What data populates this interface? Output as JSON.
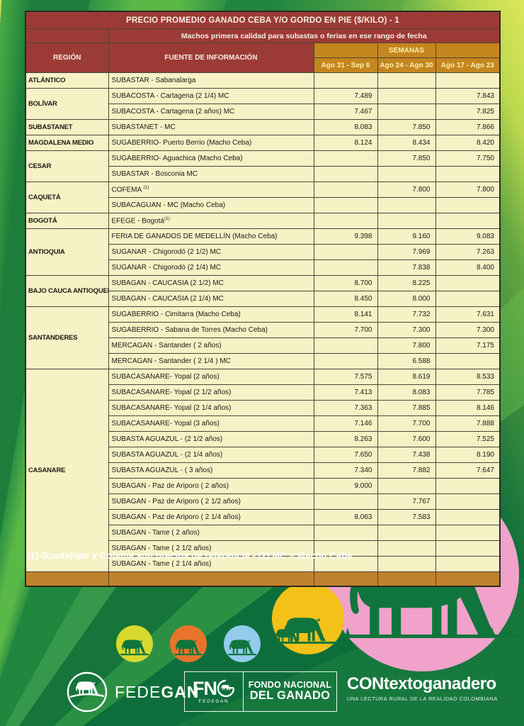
{
  "table": {
    "title": "PRECIO PROMEDIO GANADO CEBA Y/O GORDO EN PIE ($/KILO) - 1",
    "subtitle": "Machos primera calidad para subastas o ferias en ese rango de fecha",
    "col_region": "REGIÓN",
    "col_source": "FUENTE DE INFORMACIÓN",
    "col_weeks": "SEMANAS",
    "week_cols": [
      "Ago 31 - Sep 6",
      "Ago 24 - Ago 30",
      "Ago 17 - Ago 23"
    ],
    "rows": [
      {
        "region": "ATLÁNTICO",
        "span": 1,
        "source": "SUBASTAR - Sabanalarga",
        "values": [
          "",
          "",
          ""
        ]
      },
      {
        "region": "BOLÍVAR",
        "span": 2,
        "source": "SUBACOSTA - Cartagena (2 1/4) MC",
        "values": [
          "7.489",
          "",
          "7.843"
        ]
      },
      {
        "source": "SUBACOSTA - Cartagena (2 años) MC",
        "values": [
          "7.467",
          "",
          "7.825"
        ]
      },
      {
        "region": "SUBASTANET",
        "span": 1,
        "source": "SUBASTANET - MC",
        "values": [
          "8.083",
          "7.850",
          "7.866"
        ]
      },
      {
        "region": "MAGDALENA MEDIO",
        "span": 1,
        "source": "SUGABERRIO- Puerto Berrio (Macho Ceba)",
        "values": [
          "8.124",
          "8.434",
          "8.420"
        ]
      },
      {
        "region": "CESAR",
        "span": 2,
        "source": "SUGABERRIO- Aguachica  (Macho Ceba)",
        "values": [
          "",
          "7.850",
          "7.750"
        ]
      },
      {
        "source": "SUBASTAR - Bosconia MC",
        "values": [
          "",
          "",
          ""
        ]
      },
      {
        "region": "CAQUETÁ",
        "span": 2,
        "source": "COFEMA ",
        "sup": "(1)",
        "values": [
          "",
          "7.800",
          "7.800"
        ]
      },
      {
        "source": "SUBACAGUAN - MC (Macho Ceba)",
        "values": [
          "",
          "",
          ""
        ]
      },
      {
        "region": "BOGOTÁ",
        "span": 1,
        "source": "EFEGE - Bogotá",
        "sup": "(1)",
        "values": [
          "",
          "",
          ""
        ]
      },
      {
        "region": "ANTIOQUIA",
        "span": 3,
        "source": "FERIA DE GANADOS DE MEDELLÍN (Macho Ceba)",
        "values": [
          "9.398",
          "9.160",
          "9.083"
        ]
      },
      {
        "source": "SUGANAR - Chigorodó (2 1/2) MC",
        "values": [
          "",
          "7.969",
          "7.263"
        ]
      },
      {
        "source": "SUGANAR - Chigorodó (2 1/4) MC",
        "values": [
          "",
          "7.838",
          "8.400"
        ]
      },
      {
        "region": "BAJO CAUCA ANTIOQUEÑO",
        "span": 2,
        "source": "SUBAGAN - CAUCASIA (2 1/2) MC",
        "values": [
          "8.700",
          "8.225",
          ""
        ]
      },
      {
        "source": "SUBAGAN - CAUCASIA (2 1/4) MC",
        "values": [
          "8.450",
          "8.000",
          ""
        ]
      },
      {
        "region": "SANTANDERES",
        "span": 4,
        "source": "SUGABERRIO - Cimitarra (Macho Ceba)",
        "values": [
          "8.141",
          "7.732",
          "7.631"
        ]
      },
      {
        "source": "SUGABERRIO - Sabana de Torres (Macho Ceba)",
        "values": [
          "7.700",
          "7.300",
          "7.300"
        ]
      },
      {
        "source": "MERCAGAN - Santander ( 2 años)",
        "values": [
          "",
          "7.800",
          "7.175"
        ]
      },
      {
        "source": "MERCAGAN - Santander ( 2 1/4 ) MC",
        "values": [
          "",
          "6.588",
          ""
        ]
      },
      {
        "region": "CASANARE",
        "span": 13,
        "source": "SUBACASANARE- Yopal (2 años)",
        "values": [
          "7.575",
          "8.619",
          "8.533"
        ]
      },
      {
        "source": "SUBACASANARE- Yopal (2 1/2 años)",
        "values": [
          "7.413",
          "8.083",
          "7.785"
        ]
      },
      {
        "source": "SUBACASANARE- Yopal (2 1/4 años)",
        "values": [
          "7.363",
          "7.885",
          "8.146"
        ]
      },
      {
        "source": "SUBACASANARE- Yopal (3 años)",
        "values": [
          "7.146",
          "7.700",
          "7.888"
        ]
      },
      {
        "source": "SUBASTA AGUAZUL - (2 1/2 años)",
        "values": [
          "8.263",
          "7.600",
          "7.525"
        ]
      },
      {
        "source": "SUBASTA AGUAZUL - (2 1/4 años)",
        "values": [
          "7.650",
          "7.438",
          "8.190"
        ]
      },
      {
        "source": "SUBASTA AGUAZUL - ( 3 años)",
        "values": [
          "7.340",
          "7.882",
          "7.647"
        ]
      },
      {
        "source": "SUBAGAN - Paz de Ariporo ( 2 años)",
        "values": [
          "9.000",
          "",
          ""
        ]
      },
      {
        "source": "SUBAGAN - Paz de Ariporo ( 2 1/2 años)",
        "values": [
          "",
          "7.767",
          ""
        ]
      },
      {
        "source": "SUBAGAN - Paz de Ariporo ( 2  1/4 años)",
        "values": [
          "8.063",
          "7.583",
          ""
        ]
      },
      {
        "source": "SUBAGAN - Tame ( 2 años)",
        "values": [
          "",
          "",
          ""
        ]
      },
      {
        "source": "SUBAGAN - Tame ( 2 1/2 años)",
        "values": [
          "",
          "",
          ""
        ]
      },
      {
        "source": "SUBAGAN - Tame ( 2 1/4 años)",
        "values": [
          "",
          "",
          ""
        ]
      }
    ]
  },
  "footnote": "(1) Guadalupe y Cofema son precios de referencia  -  (2) MC = Macho Ceba",
  "logos": {
    "fedegan": {
      "prefix": "FEDE",
      "suffix": "GAN"
    },
    "fng": {
      "initials": "FN",
      "sub": "FEDEGAN",
      "line1": "FONDO NACIONAL",
      "line2": "DEL GANADO"
    },
    "contexto": {
      "title": "CONtextoganadero",
      "subtitle": "UNA LECTURA RURAL DE LA REALIDAD COLOMBIANA"
    }
  },
  "colors": {
    "header_red": "#9c3b36",
    "header_orange": "#c5861f",
    "footer_orange": "#c0812c",
    "cell_yellow": "#f6f2c6",
    "bg_green": "#1f8540",
    "cow_green": "#10753c",
    "circle_pink": "#f0a2ca",
    "circle_gold": "#f4c118",
    "circle_blue": "#92cbec",
    "circle_orange": "#e8742c",
    "circle_lime": "#d8d92c"
  }
}
